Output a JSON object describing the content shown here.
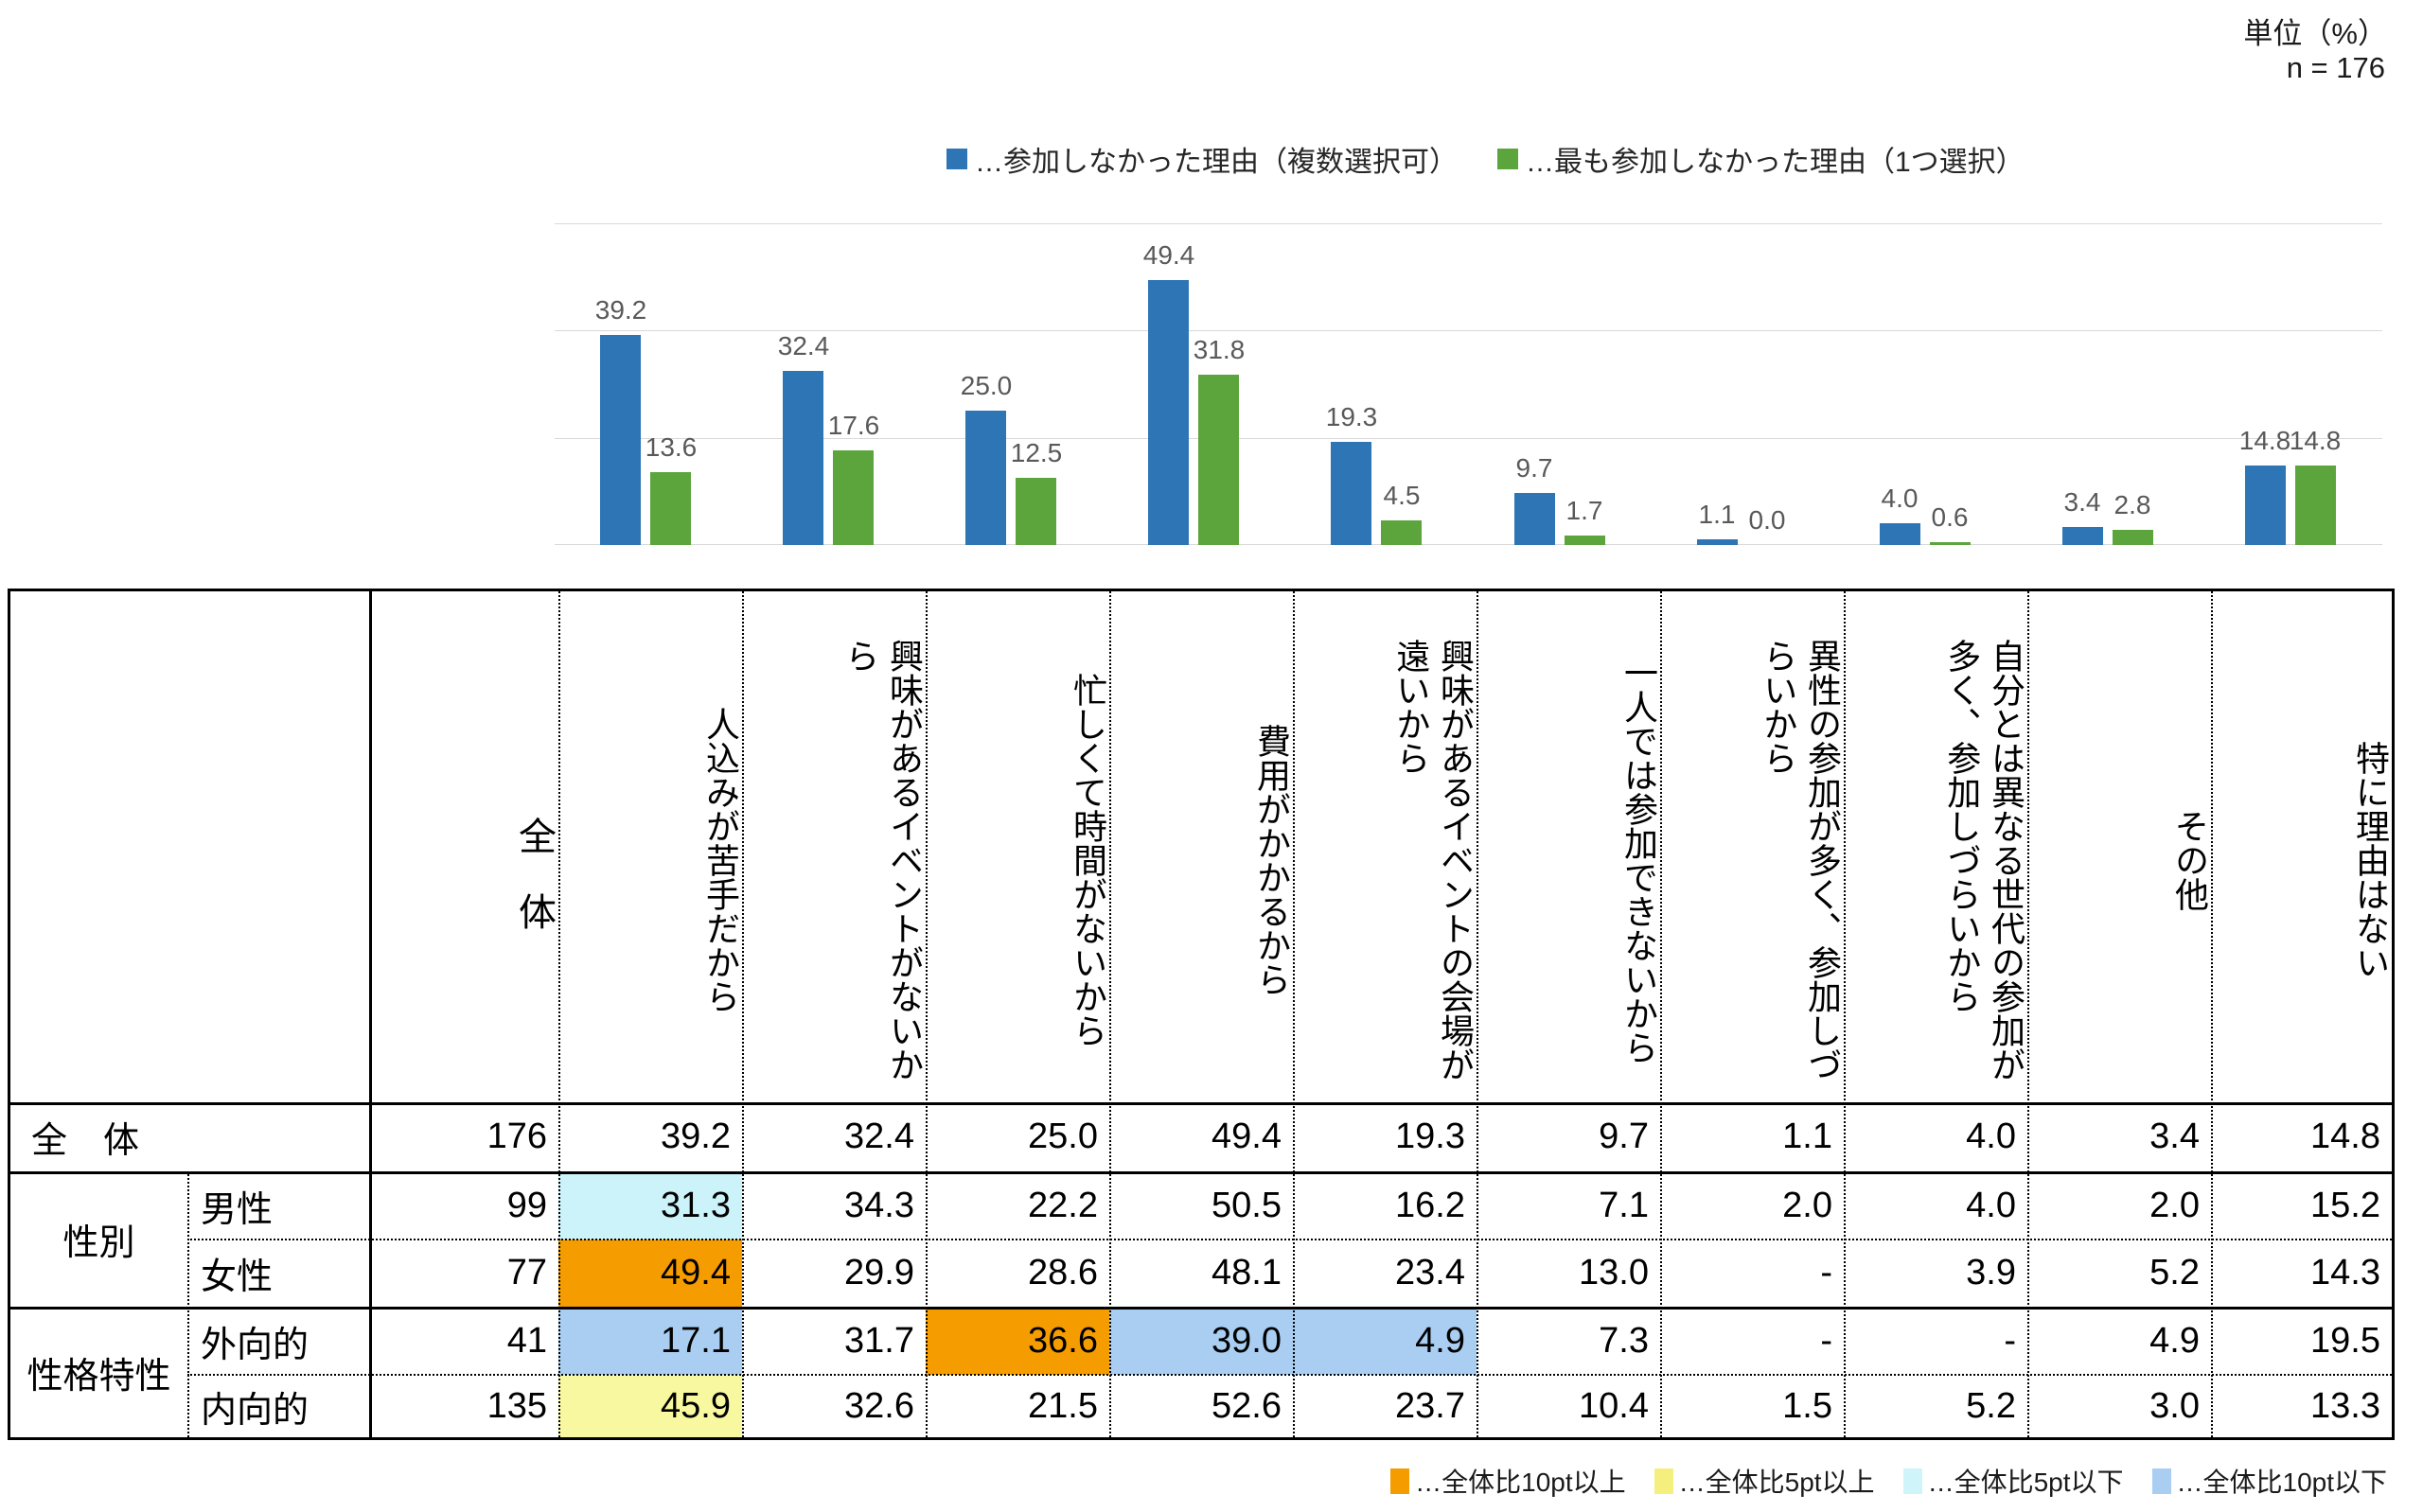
{
  "page": {
    "unit_label": "単位（%）",
    "n_label": "n = 176"
  },
  "chart_data": {
    "type": "bar",
    "categories": [
      "人込みが苦手だから",
      "興味があるイベントがないから",
      "忙しくて時間がないから",
      "費用がかかるから",
      "興味があるイベントの会場が遠いから",
      "一人では参加できないから",
      "異性の参加が多く、参加しづらいから",
      "自分とは異なる世代の参加が多く、参加しづらいから",
      "その他",
      "特に理由はない"
    ],
    "series": [
      {
        "name": "…参加しなかった理由（複数選択可）",
        "color": "#2E75B6",
        "values": [
          39.2,
          32.4,
          25.0,
          49.4,
          19.3,
          9.7,
          1.1,
          4.0,
          3.4,
          14.8
        ]
      },
      {
        "name": "…最も参加しなかった理由（1つ選択）",
        "color": "#5BA53C",
        "values": [
          13.6,
          17.6,
          12.5,
          31.8,
          4.5,
          1.7,
          0.0,
          0.6,
          2.8,
          14.8
        ]
      }
    ],
    "ylim": [
      0,
      60
    ],
    "gridline_values": [
      0,
      20,
      40,
      60
    ],
    "grid": true,
    "legend_position": "top",
    "unit": "%",
    "n": 176
  },
  "table": {
    "corner_label": "",
    "col_total_label": "全　体",
    "column_headers": [
      "人込みが苦手だから",
      "興味があるイベントがないか\nら",
      "忙しくて時間がないから",
      "費用がかかるから",
      "興味があるイベントの会場が\n遠いから",
      "一人では参加できないから",
      "異性の参加が多く、参加しづ\nらいから",
      "自分とは異なる世代の参加が\n多く、参加しづらいから",
      "その他",
      "特に理由はない"
    ],
    "rows": [
      {
        "group": "全　体",
        "sub": null,
        "n": "176",
        "values": [
          "39.2",
          "32.4",
          "25.0",
          "49.4",
          "19.3",
          "9.7",
          "1.1",
          "4.0",
          "3.4",
          "14.8"
        ],
        "highlights": [
          null,
          null,
          null,
          null,
          null,
          null,
          null,
          null,
          null,
          null
        ]
      },
      {
        "group": "性別",
        "sub": "男性",
        "n": "99",
        "values": [
          "31.3",
          "34.3",
          "22.2",
          "50.5",
          "16.2",
          "7.1",
          "2.0",
          "4.0",
          "2.0",
          "15.2"
        ],
        "highlights": [
          "cyan",
          null,
          null,
          null,
          null,
          null,
          null,
          null,
          null,
          null
        ]
      },
      {
        "group": "性別",
        "sub": "女性",
        "n": "77",
        "values": [
          "49.4",
          "29.9",
          "28.6",
          "48.1",
          "23.4",
          "13.0",
          "-",
          "3.9",
          "5.2",
          "14.3"
        ],
        "highlights": [
          "orange",
          null,
          null,
          null,
          null,
          null,
          null,
          null,
          null,
          null
        ]
      },
      {
        "group": "性格特性",
        "sub": "外向的",
        "n": "41",
        "values": [
          "17.1",
          "31.7",
          "36.6",
          "39.0",
          "4.9",
          "7.3",
          "-",
          "-",
          "4.9",
          "19.5"
        ],
        "highlights": [
          "blue",
          null,
          "orange",
          "blue",
          "blue",
          null,
          null,
          null,
          null,
          null
        ]
      },
      {
        "group": "性格特性",
        "sub": "内向的",
        "n": "135",
        "values": [
          "45.9",
          "32.6",
          "21.5",
          "52.6",
          "23.7",
          "10.4",
          "1.5",
          "5.2",
          "3.0",
          "13.3"
        ],
        "highlights": [
          "yellow",
          null,
          null,
          null,
          null,
          null,
          null,
          null,
          null,
          null
        ]
      }
    ]
  },
  "highlight_colors": {
    "orange": "#F59C00",
    "yellow": "#F8F8A0",
    "cyan": "#CBF3F9",
    "blue": "#A9CEF2"
  },
  "bottom_legend": [
    {
      "key": "orange",
      "color": "#F59C00",
      "label": "…全体比10pt以上"
    },
    {
      "key": "yellow",
      "color": "#F5EF7D",
      "label": "…全体比5pt以上"
    },
    {
      "key": "cyan",
      "color": "#CFF5FB",
      "label": "…全体比5pt以下"
    },
    {
      "key": "blue",
      "color": "#A9CEF2",
      "label": "…全体比10pt以下"
    }
  ]
}
